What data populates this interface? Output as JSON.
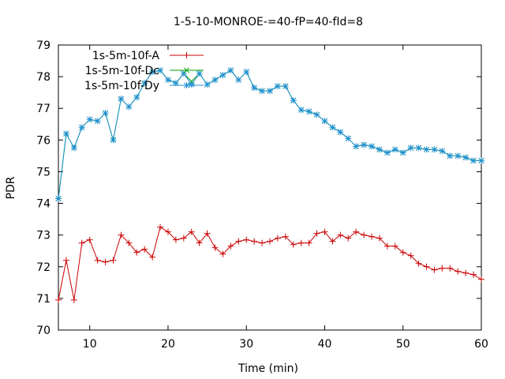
{
  "chart_data": {
    "type": "line",
    "title": "1-5-10-MONROE-=40-fP=40-fId=8",
    "xlabel": "Time (min)",
    "ylabel": "PDR",
    "xlim": [
      6,
      60
    ],
    "ylim": [
      70,
      79
    ],
    "xticks": [
      10,
      20,
      30,
      40,
      50,
      60
    ],
    "yticks": [
      70,
      71,
      72,
      73,
      74,
      75,
      76,
      77,
      78,
      79
    ],
    "grid": false,
    "legend_position": "top-left",
    "x": [
      6,
      7,
      8,
      9,
      10,
      11,
      12,
      13,
      14,
      15,
      16,
      17,
      18,
      19,
      20,
      21,
      22,
      23,
      24,
      25,
      26,
      27,
      28,
      29,
      30,
      31,
      32,
      33,
      34,
      35,
      36,
      37,
      38,
      39,
      40,
      41,
      42,
      43,
      44,
      45,
      46,
      47,
      48,
      49,
      50,
      51,
      52,
      53,
      54,
      55,
      56,
      57,
      58,
      59,
      60
    ],
    "series": [
      {
        "name": "1s-5m-10f-A",
        "color": "#cc0000",
        "marker": "plus",
        "values": [
          70.95,
          72.2,
          70.95,
          72.75,
          72.85,
          72.2,
          72.15,
          72.2,
          73.0,
          72.75,
          72.45,
          72.55,
          72.3,
          73.25,
          73.1,
          72.85,
          72.9,
          73.1,
          72.75,
          73.05,
          72.6,
          72.4,
          72.65,
          72.8,
          72.85,
          72.8,
          72.75,
          72.8,
          72.9,
          72.95,
          72.7,
          72.75,
          72.75,
          73.05,
          73.1,
          72.8,
          73.0,
          72.9,
          73.1,
          73.0,
          72.95,
          72.9,
          72.65,
          72.65,
          72.45,
          72.35,
          72.1,
          72.0,
          71.9,
          71.95,
          71.95,
          71.85,
          71.8,
          71.75,
          71.6
        ]
      },
      {
        "name": "1s-5m-10f-Dc",
        "color": "#00a000",
        "marker": "x",
        "values": [
          74.15,
          76.2,
          75.75,
          76.4,
          76.65,
          76.6,
          76.85,
          76.0,
          77.3,
          77.05,
          77.35,
          77.8,
          78.15,
          78.2,
          77.9,
          77.8,
          78.1,
          77.85,
          78.1,
          77.75,
          77.9,
          78.05,
          78.2,
          77.9,
          78.15,
          77.65,
          77.55,
          77.55,
          77.7,
          77.7,
          77.25,
          76.95,
          76.9,
          76.8,
          76.6,
          76.4,
          76.25,
          76.05,
          75.8,
          75.85,
          75.8,
          75.7,
          75.6,
          75.7,
          75.6,
          75.75,
          75.75,
          75.7,
          75.7,
          75.65,
          75.5,
          75.5,
          75.45,
          75.35,
          75.35
        ]
      },
      {
        "name": "1s-5m-10f-Dy",
        "color": "#1f8fd6",
        "marker": "star",
        "values": [
          74.15,
          76.2,
          75.75,
          76.4,
          76.65,
          76.6,
          76.85,
          76.0,
          77.3,
          77.05,
          77.35,
          77.8,
          78.15,
          78.2,
          77.9,
          77.8,
          78.1,
          77.75,
          78.1,
          77.75,
          77.9,
          78.05,
          78.2,
          77.9,
          78.15,
          77.65,
          77.55,
          77.55,
          77.7,
          77.7,
          77.25,
          76.95,
          76.9,
          76.8,
          76.6,
          76.4,
          76.25,
          76.05,
          75.8,
          75.85,
          75.8,
          75.7,
          75.6,
          75.7,
          75.6,
          75.75,
          75.75,
          75.7,
          75.7,
          75.65,
          75.5,
          75.5,
          75.45,
          75.35,
          75.35
        ]
      }
    ]
  }
}
